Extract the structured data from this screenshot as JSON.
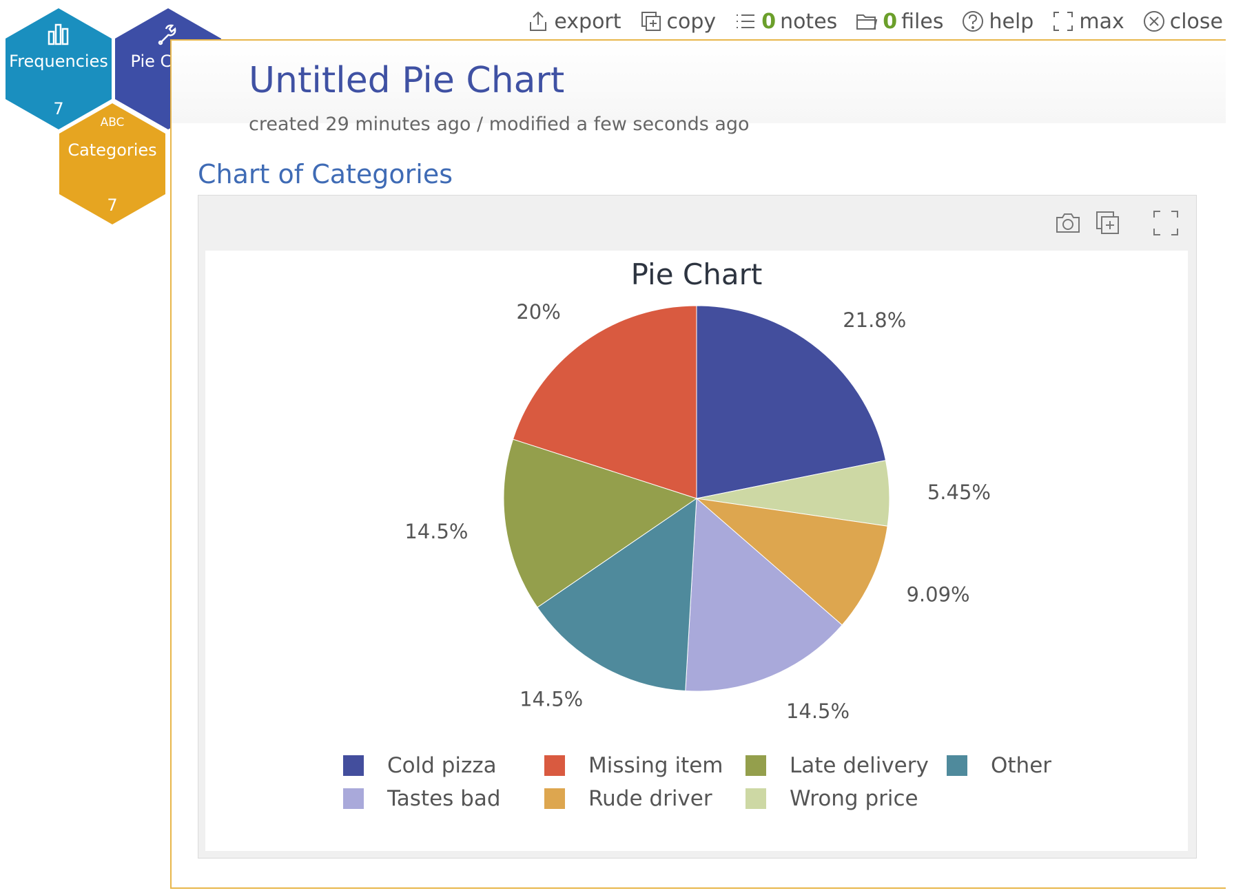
{
  "toolbar": {
    "export": "export",
    "copy": "copy",
    "notes_count": "0",
    "notes": "notes",
    "files_count": "0",
    "files": "files",
    "help": "help",
    "max": "max",
    "close": "close"
  },
  "nav": {
    "frequencies": {
      "label": "Frequencies",
      "count": "7",
      "color": "#1a8fbf"
    },
    "pie_chart": {
      "label": "Pie Chart",
      "color": "#3d4ea6"
    },
    "categories": {
      "badge": "ABC",
      "label": "Categories",
      "count": "7",
      "color": "#e6a521"
    }
  },
  "document": {
    "title": "Untitled Pie Chart",
    "meta": "created 29 minutes ago / modified a few seconds ago",
    "section_title": "Chart of Categories"
  },
  "chart_data": {
    "type": "pie",
    "title": "Pie Chart",
    "slices": [
      {
        "label": "Cold pizza",
        "value": 21.8,
        "text": "21.8%",
        "color": "#434e9d"
      },
      {
        "label": "Wrong price",
        "value": 5.45,
        "text": "5.45%",
        "color": "#cdd8a4"
      },
      {
        "label": "Rude driver",
        "value": 9.09,
        "text": "9.09%",
        "color": "#dda64f"
      },
      {
        "label": "Tastes bad",
        "value": 14.5,
        "text": "14.5%",
        "color": "#a9a9da"
      },
      {
        "label": "Other",
        "value": 14.5,
        "text": "14.5%",
        "color": "#4f8a9c"
      },
      {
        "label": "Late delivery",
        "value": 14.5,
        "text": "14.5%",
        "color": "#949f4c"
      },
      {
        "label": "Missing item",
        "value": 20,
        "text": "20%",
        "color": "#d95a40"
      }
    ],
    "legend_order": [
      "Cold pizza",
      "Missing item",
      "Late delivery",
      "Other",
      "Tastes bad",
      "Rude driver",
      "Wrong price"
    ],
    "legend_placement": "bottom"
  }
}
